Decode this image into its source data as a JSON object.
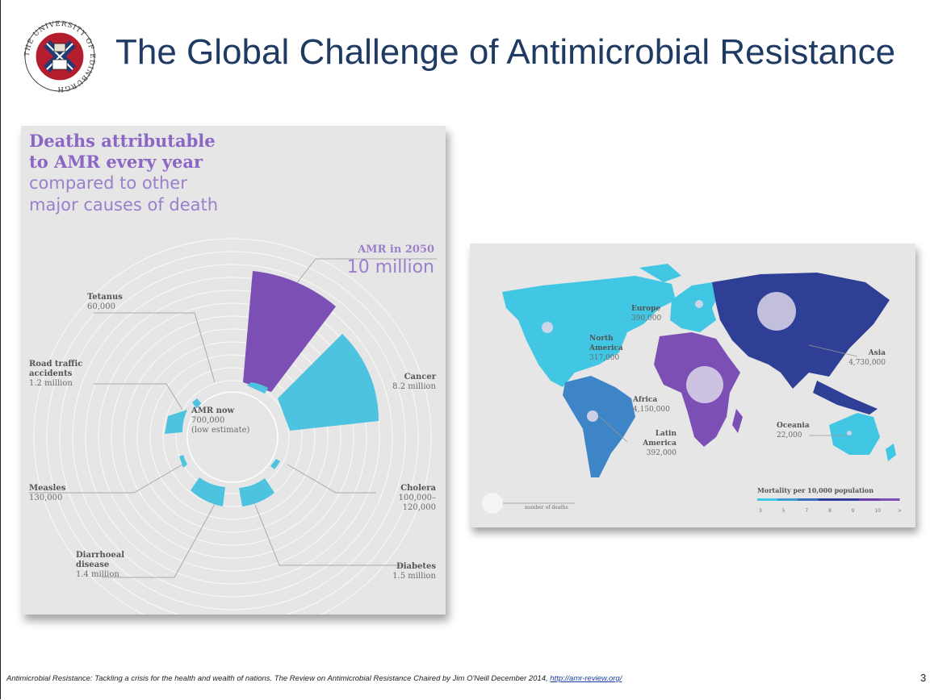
{
  "slide": {
    "title": "The Global Challenge of Antimicrobial Resistance",
    "page_number": "3",
    "logo_text": "THE UNIVERSITY OF EDINBURGH"
  },
  "infographic": {
    "heading_bold_1": "Deaths attributable",
    "heading_bold_2": "to AMR every year",
    "heading_light_1": "compared to other",
    "heading_light_2": "major causes of death",
    "amr_2050_label": "AMR in 2050",
    "amr_2050_value": "10 million",
    "amr_now_label": "AMR now",
    "amr_now_value": "700,000",
    "amr_now_note": "(low estimate)",
    "causes": [
      {
        "name": "Tetanus",
        "value": "60,000"
      },
      {
        "name": "Road traffic",
        "name2": "accidents",
        "value": "1.2 million"
      },
      {
        "name": "Measles",
        "value": "130,000"
      },
      {
        "name": "Diarrhoeal",
        "name2": "disease",
        "value": "1.4 million"
      },
      {
        "name": "Diabetes",
        "value": "1.5 million"
      },
      {
        "name": "Cholera",
        "value": "100,000–",
        "value2": "120,000"
      },
      {
        "name": "Cancer",
        "value": "8.2 million"
      }
    ],
    "colors": {
      "amr": "#7b4fb3",
      "cause": "#4ec3e0",
      "ring": "#ffffff"
    }
  },
  "map": {
    "regions": [
      {
        "name": "Europe",
        "value": "390,000"
      },
      {
        "name": "North",
        "name2": "America",
        "value": "317,000"
      },
      {
        "name": "Asia",
        "value": "4,730,000"
      },
      {
        "name": "Africa",
        "value": "4,150,000"
      },
      {
        "name": "Latin",
        "name2": "America",
        "value": "392,000"
      },
      {
        "name": "Oceania",
        "value": "22,000"
      }
    ],
    "legend_bubble_label": "number of deaths",
    "legend_scale_title": "Mortality per 10,000 population",
    "legend_scale_ticks": [
      "3",
      "5",
      "7",
      "8",
      "9",
      "10",
      ">"
    ],
    "scale_colors": [
      "#41c6e3",
      "#3e9bd1",
      "#3a6dbd",
      "#2f3f95",
      "#353f9a",
      "#6a3fa8",
      "#7b4fb3"
    ]
  },
  "footer": {
    "citation": "Antimicrobial Resistance: Tackling a crisis for the health and wealth of nations. The Review on Antimicrobial Resistance Chaired by Jim O'Neill December 2014, ",
    "link": "http://amr-review.org/"
  }
}
